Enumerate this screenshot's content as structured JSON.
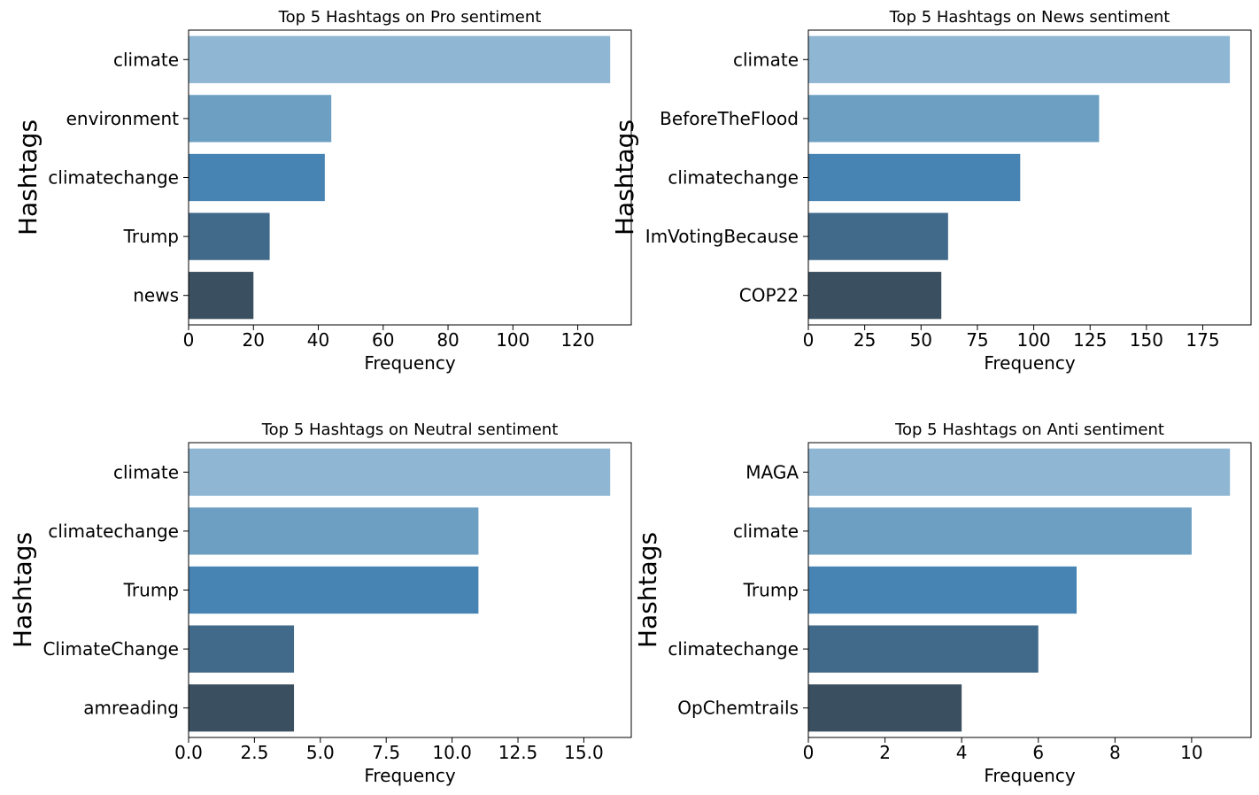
{
  "chart_data": [
    {
      "type": "bar",
      "orientation": "horizontal",
      "title": "Top 5 Hashtags on Pro sentiment",
      "xlabel": "Frequency",
      "ylabel": "Hashtags",
      "categories": [
        "climate",
        "environment",
        "climatechange",
        "Trump",
        "news"
      ],
      "values": [
        130,
        44,
        42,
        25,
        20
      ],
      "xlim": [
        0,
        136.5
      ],
      "xticks": [
        0,
        20,
        40,
        60,
        80,
        100,
        120
      ],
      "xtick_labels": [
        "0",
        "20",
        "40",
        "60",
        "80",
        "100",
        "120"
      ],
      "colors": [
        "#8fb6d3",
        "#6c9fc2",
        "#4784b3",
        "#416989",
        "#3a4f5f"
      ]
    },
    {
      "type": "bar",
      "orientation": "horizontal",
      "title": "Top 5 Hashtags on News sentiment",
      "xlabel": "Frequency",
      "ylabel": "Hashtags",
      "categories": [
        "climate",
        "BeforeTheFlood",
        "climatechange",
        "ImVotingBecause",
        "COP22"
      ],
      "values": [
        187,
        129,
        94,
        62,
        59
      ],
      "xlim": [
        0,
        196.4
      ],
      "xticks": [
        0,
        25,
        50,
        75,
        100,
        125,
        150,
        175
      ],
      "xtick_labels": [
        "0",
        "25",
        "50",
        "75",
        "100",
        "125",
        "150",
        "175"
      ],
      "colors": [
        "#8fb6d3",
        "#6c9fc2",
        "#4784b3",
        "#416989",
        "#3a4f5f"
      ]
    },
    {
      "type": "bar",
      "orientation": "horizontal",
      "title": "Top 5 Hashtags on Neutral sentiment",
      "xlabel": "Frequency",
      "ylabel": "Hashtags",
      "categories": [
        "climate",
        "climatechange",
        "Trump",
        "ClimateChange",
        "amreading"
      ],
      "values": [
        16,
        11,
        11,
        4,
        4
      ],
      "xlim": [
        0,
        16.8
      ],
      "xticks": [
        0,
        2.5,
        5,
        7.5,
        10,
        12.5,
        15
      ],
      "xtick_labels": [
        "0.0",
        "2.5",
        "5.0",
        "7.5",
        "10.0",
        "12.5",
        "15.0"
      ],
      "colors": [
        "#8fb6d3",
        "#6c9fc2",
        "#4784b3",
        "#416989",
        "#3a4f5f"
      ]
    },
    {
      "type": "bar",
      "orientation": "horizontal",
      "title": "Top 5 Hashtags on Anti sentiment",
      "xlabel": "Frequency",
      "ylabel": "Hashtags",
      "categories": [
        "MAGA",
        "climate",
        "Trump",
        "climatechange",
        "OpChemtrails"
      ],
      "values": [
        11,
        10,
        7,
        6,
        4
      ],
      "xlim": [
        0,
        11.55
      ],
      "xticks": [
        0,
        2,
        4,
        6,
        8,
        10
      ],
      "xtick_labels": [
        "0",
        "2",
        "4",
        "6",
        "8",
        "10"
      ],
      "colors": [
        "#8fb6d3",
        "#6c9fc2",
        "#4784b3",
        "#416989",
        "#3a4f5f"
      ]
    }
  ]
}
